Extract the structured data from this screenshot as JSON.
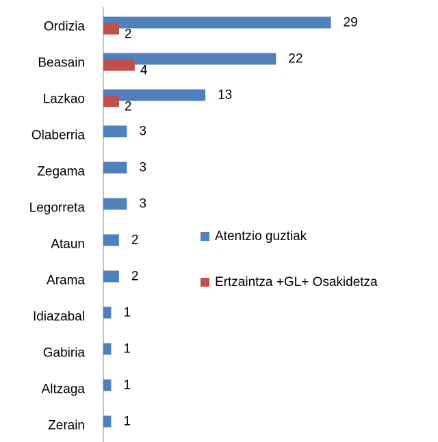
{
  "chart_data": {
    "type": "bar",
    "orientation": "horizontal",
    "categories": [
      "Ordizia",
      "Beasain",
      "Lazkao",
      "Olaberria",
      "Zegama",
      "Legorreta",
      "Ataun",
      "Arama",
      "Idiazabal",
      "Gabiria",
      "Altzaga",
      "Zerain"
    ],
    "series": [
      {
        "name": "Atentzio guztiak",
        "color": "#4f81bd",
        "values": [
          29,
          22,
          13,
          3,
          3,
          3,
          2,
          2,
          1,
          1,
          1,
          1
        ]
      },
      {
        "name": "Ertzaintza +GL+ Osakidetza",
        "color": "#c0504d",
        "values": [
          2,
          4,
          2,
          null,
          null,
          null,
          null,
          null,
          null,
          null,
          null,
          null
        ]
      }
    ],
    "xlim": [
      0,
      30
    ],
    "legend": "right"
  }
}
